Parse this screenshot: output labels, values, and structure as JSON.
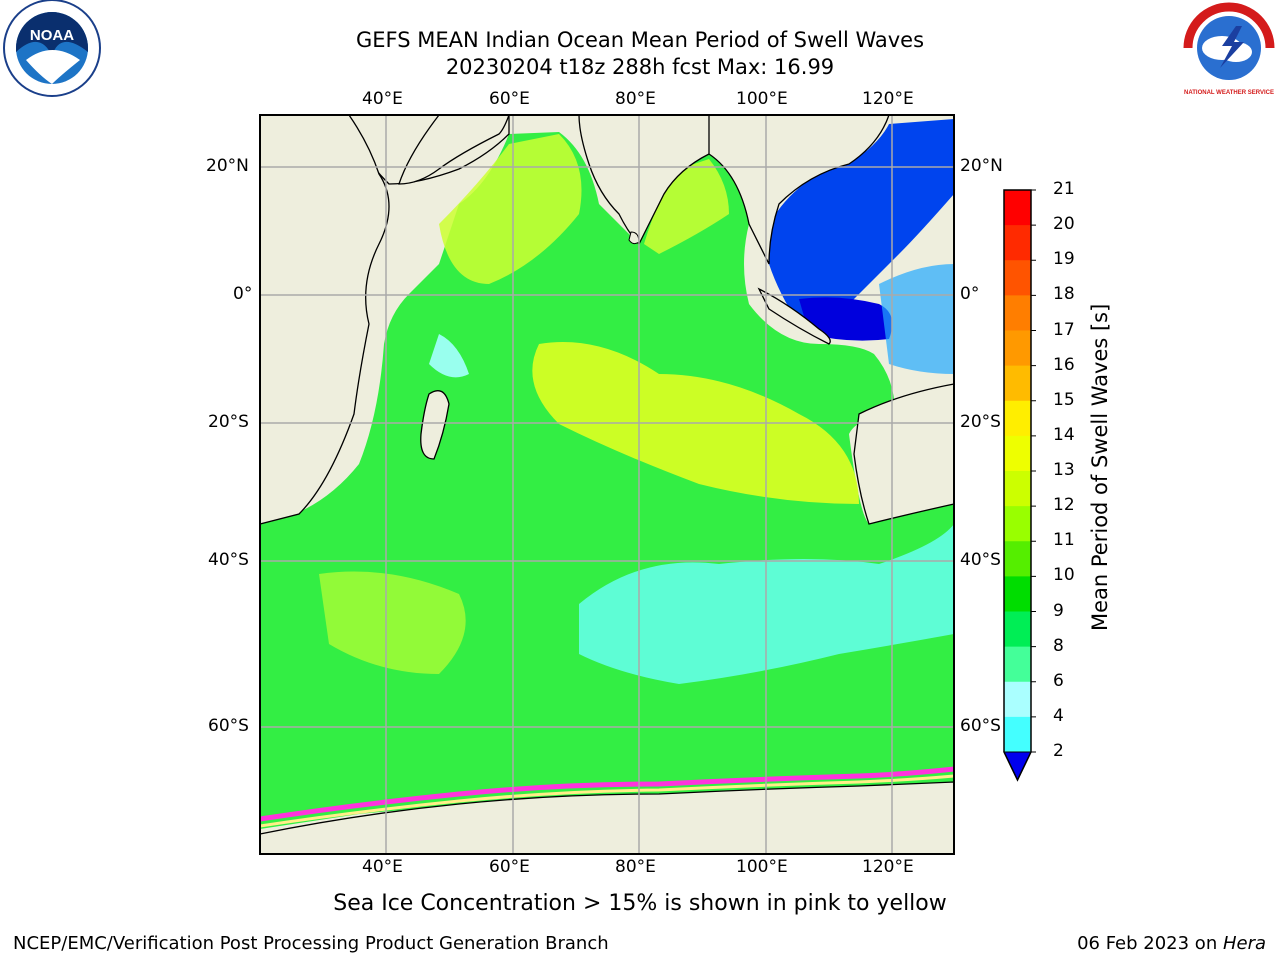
{
  "title": {
    "line1": "GEFS MEAN Indian Ocean Mean Period of Swell Waves",
    "line2": "20230204 t18z 288h fcst   Max: 16.99"
  },
  "map": {
    "lon_labels": [
      "40°E",
      "60°E",
      "80°E",
      "100°E",
      "120°E"
    ],
    "lat_labels_left": [
      "20°N",
      "0°",
      "20°S",
      "40°S",
      "60°S"
    ],
    "lat_labels_right": [
      "20°N",
      "0°",
      "20°S",
      "40°S",
      "60°S"
    ],
    "land_color": "#eeeedd",
    "grid_color": "#aaaaaa"
  },
  "colorbar": {
    "title": "Mean Period of Swell Waves [s]",
    "labels": [
      "21",
      "20",
      "19",
      "18",
      "17",
      "16",
      "15",
      "14",
      "13",
      "12",
      "11",
      "10",
      "9",
      "8",
      "6",
      "4",
      "2"
    ],
    "colors_top_to_bottom": [
      "#ff0000",
      "#ff2a00",
      "#ff5400",
      "#ff7e00",
      "#ff9900",
      "#ffbb00",
      "#ffee00",
      "#eeff00",
      "#ccff00",
      "#99ff00",
      "#55ee00",
      "#00dd00",
      "#00ee55",
      "#44ff99",
      "#aaffff",
      "#44ffff",
      "#00eeff",
      "#0088ff"
    ],
    "extend_color": "#0000ee"
  },
  "logos": {
    "noaa_text": "NOAA",
    "nws_text": "NATIONAL WEATHER SERVICE"
  },
  "note": "Sea Ice Concentration > 15% is shown in pink to yellow",
  "footer": {
    "left": "NCEP/EMC/Verification Post Processing Product Generation Branch",
    "right_date": "06 Feb 2023 on ",
    "right_host": "Hera"
  }
}
